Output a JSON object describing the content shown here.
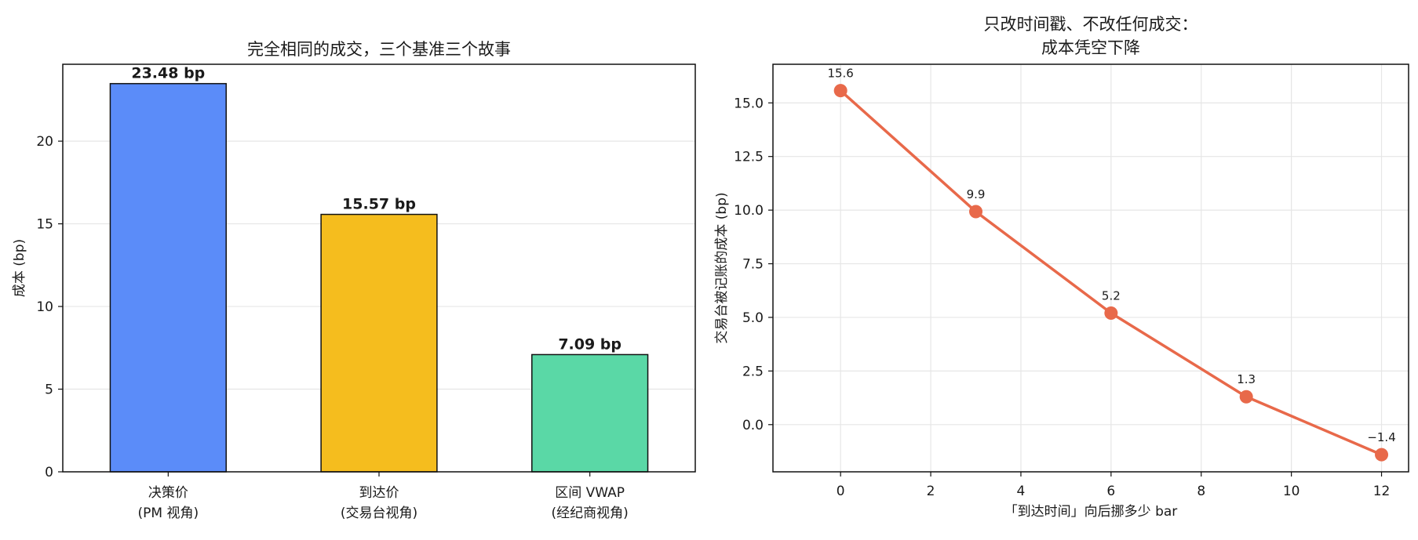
{
  "chart_data": [
    {
      "type": "bar",
      "title": "完全相同的成交，三个基准三个故事",
      "xlabel": "",
      "ylabel": "成本 (bp)",
      "ylim": [
        0,
        24.65
      ],
      "yticks": [
        0,
        5,
        10,
        15,
        20
      ],
      "grid": "y",
      "categories": [
        [
          "决策价",
          "(PM 视角)"
        ],
        [
          "到达价",
          "(交易台视角)"
        ],
        [
          "区间 VWAP",
          "(经纪商视角)"
        ]
      ],
      "values": [
        23.48,
        15.57,
        7.09
      ],
      "value_labels": [
        "23.48 bp",
        "15.57 bp",
        "7.09 bp"
      ],
      "colors": [
        "#5b8cf9",
        "#f5bd1e",
        "#5ad8a6"
      ]
    },
    {
      "type": "line",
      "title": [
        "只改时间戳、不改任何成交：",
        "成本凭空下降"
      ],
      "xlabel": "「到达时间」向后挪多少 bar",
      "ylabel": "交易台被记账的成本 (bp)",
      "xlim": [
        -1.5,
        12.6
      ],
      "ylim": [
        -2.2,
        16.8
      ],
      "xticks": [
        0,
        2,
        4,
        6,
        8,
        10,
        12
      ],
      "yticks": [
        0.0,
        2.5,
        5.0,
        7.5,
        10.0,
        12.5,
        15.0
      ],
      "ytick_labels": [
        "0.0",
        "2.5",
        "5.0",
        "7.5",
        "10.0",
        "12.5",
        "15.0"
      ],
      "grid": "both",
      "color": "#e8694a",
      "x": [
        0,
        3,
        6,
        9,
        12
      ],
      "y": [
        15.57,
        9.93,
        5.2,
        1.3,
        -1.4
      ],
      "point_labels": [
        "15.6",
        "9.9",
        "5.2",
        "1.3",
        "−1.4"
      ]
    }
  ]
}
